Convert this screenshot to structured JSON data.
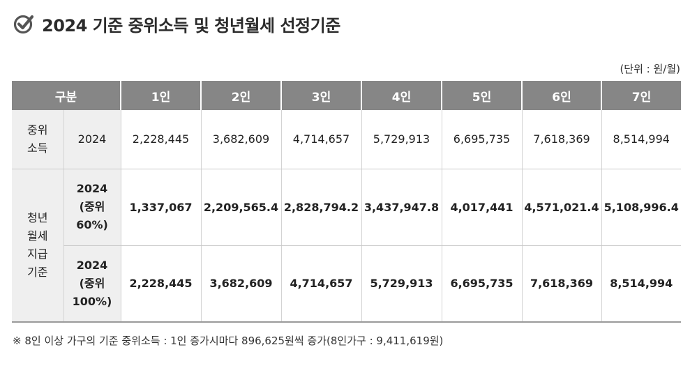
{
  "title": "2024 기준 중위소득 및 청년월세 선정기준",
  "unit": "(단위 : 원/월)",
  "header": {
    "category": "구분",
    "columns": [
      "1인",
      "2인",
      "3인",
      "4인",
      "5인",
      "6인",
      "7인"
    ]
  },
  "rows": {
    "median": {
      "label": "중위\n소득",
      "sub": "2024",
      "values": [
        "2,228,445",
        "3,682,609",
        "4,714,657",
        "5,729,913",
        "6,695,735",
        "7,618,369",
        "8,514,994"
      ]
    },
    "rent_group_label": "청년\n월세\n지급\n기준",
    "rent60": {
      "sub": "2024\n(중위\n60%)",
      "values": [
        "1,337,067",
        "2,209,565.4",
        "2,828,794.2",
        "3,437,947.8",
        "4,017,441",
        "4,571,021.4",
        "5,108,996.4"
      ]
    },
    "rent100": {
      "sub": "2024\n(중위\n100%)",
      "values": [
        "2,228,445",
        "3,682,609",
        "4,714,657",
        "5,729,913",
        "6,695,735",
        "7,618,369",
        "8,514,994"
      ]
    }
  },
  "footnote": "※ 8인 이상 가구의 기준 중위소득 : 1인 증가시마다 896,625원씩 증가(8인가구 : 9,411,619원)"
}
